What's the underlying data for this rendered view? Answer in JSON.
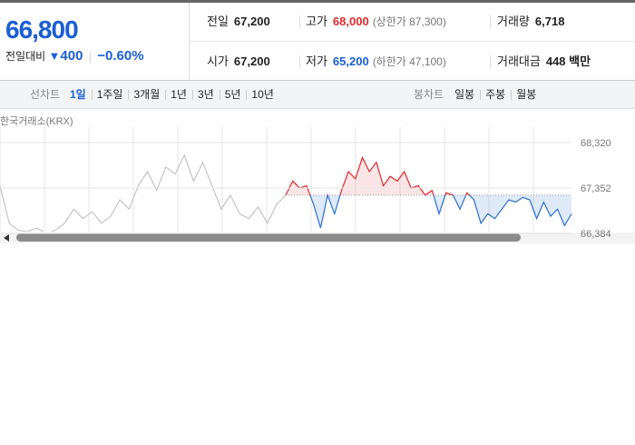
{
  "quote": {
    "price": "66,800",
    "change_label": "전일대비",
    "change_icon": "▼",
    "change": "400",
    "change_rate": "−0.60%"
  },
  "summary": [
    [
      {
        "label": "전일",
        "value": "67,200"
      },
      {
        "label": "고가",
        "value": "68,000",
        "note": "(상한가 87,300)",
        "tone": "up"
      },
      {
        "label": "거래량",
        "value": "6,718"
      }
    ],
    [
      {
        "label": "시가",
        "value": "67,200"
      },
      {
        "label": "저가",
        "value": "65,200",
        "note": "(하한가 47,100)",
        "tone": "down"
      },
      {
        "label": "거래대금",
        "value": "448 백만"
      }
    ]
  ],
  "tabs": {
    "line_label": "선차트",
    "line": [
      "1일",
      "1주일",
      "3개월",
      "1년",
      "3년",
      "5년",
      "10년"
    ],
    "selected": 0,
    "candle_label": "봉차트",
    "candle": [
      "일봉",
      "주봉",
      "월봉"
    ]
  },
  "chart_data": {
    "type": "line",
    "source": "한국거래소(KRX)",
    "ylim": [
      66384,
      68320
    ],
    "yticks": [
      {
        "value": 68320,
        "label": "68,320"
      },
      {
        "value": 67352,
        "label": "67,352"
      },
      {
        "value": 66384,
        "label": "66,384"
      }
    ],
    "baseline": 67200,
    "series": [
      {
        "color": "#c4c4c4",
        "values": [
          67390,
          66600,
          66450,
          66420,
          66500,
          66380,
          66450,
          66600,
          66900,
          66700,
          66850,
          66600,
          66750,
          67100,
          66900,
          67400,
          67700,
          67300,
          67800,
          67650,
          68050,
          67500,
          67900,
          67400,
          66900,
          67200,
          66800,
          66700,
          66950,
          66600,
          67000,
          67200
        ]
      },
      {
        "color": "#2a6fcf",
        "up_color": "#e0292d",
        "values": [
          67200,
          67500,
          67350,
          67400,
          67000,
          66500,
          67200,
          66800,
          67300,
          67700,
          67550,
          68000,
          67700,
          67900,
          67400,
          67600,
          67500,
          67700,
          67350,
          67400,
          67200,
          67300,
          66800,
          67250,
          67200,
          66900,
          67250,
          67100,
          66600,
          66800,
          66700,
          66900,
          67100,
          67050,
          67150,
          67100,
          66700,
          67050,
          66750,
          66900,
          66550,
          66800
        ]
      }
    ]
  }
}
